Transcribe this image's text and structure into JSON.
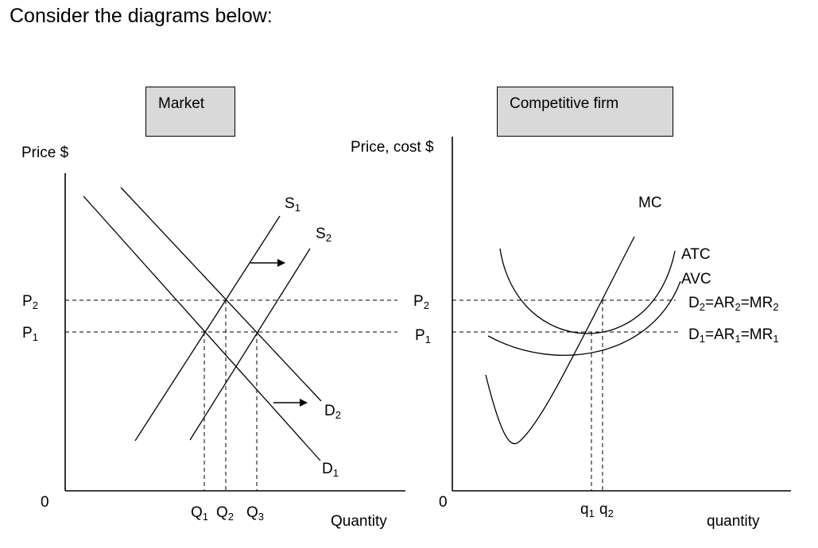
{
  "heading": "Consider the diagrams below:",
  "market": {
    "title": "Market",
    "y_axis_label": "Price $",
    "x_axis_label": "Quantity",
    "origin": "0",
    "price_labels": [
      {
        "base": "P",
        "sub": "2"
      },
      {
        "base": "P",
        "sub": "1"
      }
    ],
    "quantity_labels": [
      {
        "base": "Q",
        "sub": "1"
      },
      {
        "base": "Q",
        "sub": "2"
      },
      {
        "base": "Q",
        "sub": "3"
      }
    ],
    "curves": {
      "s1": {
        "base": "S",
        "sub": "1"
      },
      "s2": {
        "base": "S",
        "sub": "2"
      },
      "d1": {
        "base": "D",
        "sub": "1"
      },
      "d2": {
        "base": "D",
        "sub": "2"
      }
    }
  },
  "firm": {
    "title": "Competitive firm",
    "y_axis_label": "Price, cost $",
    "x_axis_label": "quantity",
    "origin": "0",
    "price_labels": [
      {
        "base": "P",
        "sub": "2"
      },
      {
        "base": "P",
        "sub": "1"
      }
    ],
    "quantity_labels": [
      {
        "base": "q",
        "sub": "1"
      },
      {
        "base": "q",
        "sub": "2"
      }
    ],
    "curves": {
      "mc": "MC",
      "atc": "ATC",
      "avc": "AVC"
    },
    "demand_labels": {
      "d2": {
        "p1": "D",
        "s1": "2",
        "p2": "=AR",
        "s2": "2",
        "p3": "=MR",
        "s3": "2"
      },
      "d1": {
        "p1": "D",
        "s1": "1",
        "p2": "=AR",
        "s2": "1",
        "p3": "=MR",
        "s3": "1"
      }
    }
  }
}
